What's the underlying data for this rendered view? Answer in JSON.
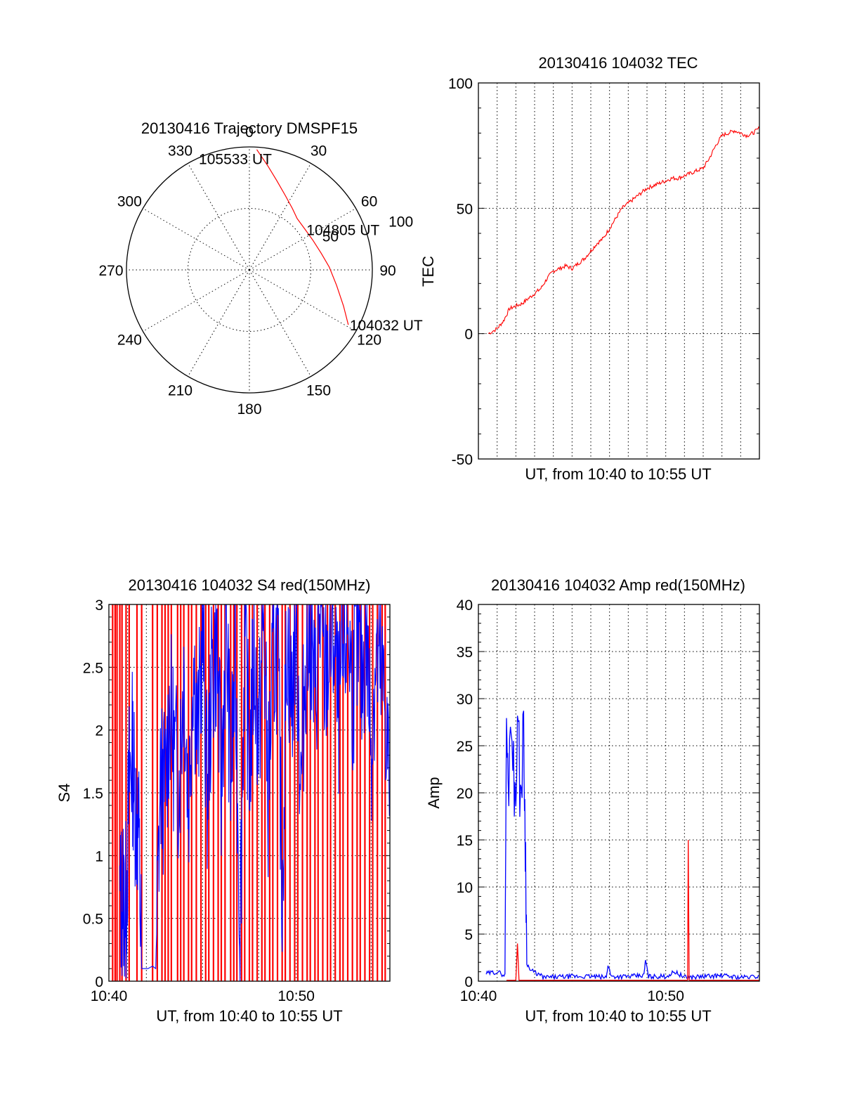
{
  "chart_data": [
    {
      "id": "trajectory",
      "type": "polar",
      "title": "20130416 Trajectory DMSPF15",
      "azimuth_labels": [
        "0",
        "30",
        "60",
        "90",
        "120",
        "150",
        "180",
        "210",
        "240",
        "270",
        "300",
        "330"
      ],
      "radial_labels": [
        "50",
        "100"
      ],
      "radial_max": 100,
      "series": [
        {
          "color": "#ff0000",
          "points": [
            {
              "azimuth": 119,
              "radius": 92
            },
            {
              "azimuth": 111,
              "radius": 82
            },
            {
              "azimuth": 100,
              "radius": 72
            },
            {
              "azimuth": 88,
              "radius": 65
            },
            {
              "azimuth": 77,
              "radius": 60
            },
            {
              "azimuth": 65,
              "radius": 57
            },
            {
              "azimuth": 54,
              "radius": 56
            },
            {
              "azimuth": 43,
              "radius": 57
            },
            {
              "azimuth": 35,
              "radius": 61
            },
            {
              "azimuth": 26,
              "radius": 67
            },
            {
              "azimuth": 17,
              "radius": 76
            },
            {
              "azimuth": 10,
              "radius": 86
            },
            {
              "azimuth": 3.5,
              "radius": 98
            }
          ]
        }
      ],
      "annotations": [
        {
          "text": "105533 UT",
          "azimuth": 335,
          "radius": 100
        },
        {
          "text": "104805 UT",
          "azimuth": 54,
          "radius": 56
        },
        {
          "text": "104032 UT",
          "azimuth": 119,
          "radius": 92
        }
      ]
    },
    {
      "id": "tec",
      "type": "line",
      "title": "20130416 104032 TEC",
      "xlabel": "UT, from 10:40 to 10:55 UT",
      "ylabel": "TEC",
      "xlim": [
        "10:40",
        "10:55"
      ],
      "ylim": [
        -50,
        100
      ],
      "yticks": [
        "100",
        "50",
        "0",
        "-50"
      ],
      "xticks": [],
      "series": [
        {
          "color": "#ff0000",
          "x": [
            "10:40:32",
            "10:41:00",
            "10:41:20",
            "10:41:40",
            "10:42:00",
            "10:42:20",
            "10:42:40",
            "10:43:00",
            "10:43:20",
            "10:43:40",
            "10:44:00",
            "10:44:20",
            "10:44:40",
            "10:45:00",
            "10:45:20",
            "10:45:40",
            "10:46:00",
            "10:46:20",
            "10:46:40",
            "10:47:00",
            "10:47:20",
            "10:47:40",
            "10:48:00",
            "10:48:20",
            "10:48:40",
            "10:49:00",
            "10:49:20",
            "10:49:40",
            "10:50:00",
            "10:50:20",
            "10:50:40",
            "10:51:00",
            "10:51:20",
            "10:51:40",
            "10:52:00",
            "10:52:20",
            "10:52:40",
            "10:53:00",
            "10:53:20",
            "10:53:40",
            "10:54:00",
            "10:54:20",
            "10:54:40",
            "10:55:00"
          ],
          "y": [
            0,
            2,
            5,
            10,
            11,
            12,
            14,
            16,
            18,
            22,
            25,
            26,
            27,
            26,
            28,
            30,
            33,
            36,
            38,
            42,
            46,
            50,
            52,
            54,
            56,
            58,
            59,
            60,
            61,
            62,
            62,
            63,
            64,
            65,
            66,
            70,
            75,
            79,
            80,
            81,
            80,
            79,
            80,
            82
          ]
        }
      ]
    },
    {
      "id": "s4",
      "type": "line",
      "title": "20130416 104032 S4 red(150MHz)",
      "xlabel": "UT, from 10:40 to 10:55 UT",
      "ylabel": "S4",
      "xlim": [
        "10:40",
        "10:55"
      ],
      "ylim": [
        0,
        3
      ],
      "yticks": [
        "3",
        "2.5",
        "2",
        "1.5",
        "1",
        "0.5",
        "0"
      ],
      "xticks": [
        "10:40",
        "10:50"
      ],
      "series": [
        {
          "color": "#ff0000",
          "x": [
            "10:40:12",
            "10:40:20",
            "10:40:26",
            "10:40:35",
            "10:40:42",
            "10:40:55",
            "10:41:05",
            "10:41:30",
            "10:41:45",
            "10:42:20",
            "10:42:35",
            "10:42:50",
            "10:43:00",
            "10:43:10",
            "10:43:20",
            "10:43:40",
            "10:43:50",
            "10:44:00",
            "10:44:15",
            "10:44:25",
            "10:44:40",
            "10:44:55",
            "10:45:10",
            "10:45:20",
            "10:45:35",
            "10:45:50",
            "10:46:00",
            "10:46:12",
            "10:46:30",
            "10:46:40",
            "10:46:50",
            "10:47:05",
            "10:47:15",
            "10:47:30",
            "10:47:40",
            "10:47:55",
            "10:48:10",
            "10:48:20",
            "10:48:35",
            "10:48:45",
            "10:49:00",
            "10:49:15",
            "10:49:25",
            "10:49:40",
            "10:49:55",
            "10:50:05",
            "10:50:20",
            "10:50:35",
            "10:50:45",
            "10:51:00",
            "10:51:10",
            "10:51:25",
            "10:51:40",
            "10:51:50",
            "10:52:05",
            "10:52:20",
            "10:52:30",
            "10:52:45",
            "10:53:00",
            "10:53:15",
            "10:53:25",
            "10:53:40",
            "10:53:55",
            "10:54:05",
            "10:54:20",
            "10:54:35",
            "10:54:45"
          ],
          "style": "spikes"
        },
        {
          "color": "#0000ff",
          "x": [
            "10:40:35",
            "10:40:45",
            "10:40:55",
            "10:41:05",
            "10:41:15",
            "10:41:25",
            "10:41:35",
            "10:41:45",
            "10:41:55",
            "10:42:05",
            "10:42:20",
            "10:42:30",
            "10:42:45",
            "10:43:00",
            "10:43:15",
            "10:43:30",
            "10:43:45",
            "10:44:00",
            "10:44:15",
            "10:44:30",
            "10:44:45",
            "10:45:00",
            "10:45:15",
            "10:45:30",
            "10:45:45",
            "10:46:00",
            "10:46:15",
            "10:46:30",
            "10:46:45",
            "10:47:00",
            "10:47:15",
            "10:47:30",
            "10:47:45",
            "10:48:00",
            "10:48:15",
            "10:48:30",
            "10:48:45",
            "10:49:00",
            "10:49:15",
            "10:49:30",
            "10:49:45",
            "10:50:00",
            "10:50:15",
            "10:50:30",
            "10:50:45",
            "10:51:00",
            "10:51:15",
            "10:51:30",
            "10:51:45",
            "10:52:00",
            "10:52:15",
            "10:52:30",
            "10:52:45",
            "10:53:00",
            "10:53:15",
            "10:53:30",
            "10:53:45",
            "10:54:00",
            "10:54:15",
            "10:54:30",
            "10:54:45",
            "10:55:00"
          ],
          "y": [
            0.6,
            0.7,
            0.6,
            1.6,
            1.8,
            1.4,
            1.2,
            0.1,
            0.1,
            0.1,
            0.12,
            0.1,
            1.6,
            1.5,
            2.2,
            1.8,
            1.6,
            2.5,
            1.4,
            2.6,
            1.9,
            2.8,
            1.5,
            2.4,
            2.7,
            1.5,
            2.9,
            1.6,
            2.5,
            0.4,
            2.8,
            1.7,
            2.6,
            1.9,
            2.9,
            1.5,
            2.5,
            2.7,
            0.7,
            2.8,
            2.2,
            2.9,
            1.5,
            2.6,
            2.8,
            2.2,
            2.9,
            2.4,
            2.6,
            2.8,
            2.1,
            2.5,
            2.9,
            2.3,
            2.7,
            2.4,
            2.8,
            1.9,
            2.6,
            2.4,
            2.2,
            1.5
          ]
        }
      ]
    },
    {
      "id": "amp",
      "type": "line",
      "title": "20130416 104032 Amp red(150MHz)",
      "xlabel": "UT, from 10:40 to 10:55 UT",
      "ylabel": "Amp",
      "xlim": [
        "10:40",
        "10:55"
      ],
      "ylim": [
        0,
        40
      ],
      "yticks": [
        "40",
        "35",
        "30",
        "25",
        "20",
        "15",
        "10",
        "5",
        "0"
      ],
      "xticks": [
        "10:40",
        "10:50"
      ],
      "series": [
        {
          "color": "#0000ff",
          "x": [
            "10:40:25",
            "10:41:00",
            "10:41:25",
            "10:41:30",
            "10:41:35",
            "10:41:45",
            "10:41:55",
            "10:42:05",
            "10:42:15",
            "10:42:25",
            "10:42:30",
            "10:42:35",
            "10:42:45",
            "10:43:30",
            "10:45:00",
            "10:46:00",
            "10:46:50",
            "10:46:55",
            "10:47:05",
            "10:48:00",
            "10:48:50",
            "10:48:55",
            "10:49:05",
            "10:50:00",
            "10:50:30",
            "10:51:00",
            "10:52:00",
            "10:53:00",
            "10:54:00",
            "10:55:00"
          ],
          "y": [
            0.8,
            1.0,
            0.6,
            28,
            20,
            30,
            19,
            27,
            20,
            26,
            16,
            2,
            1.2,
            0.4,
            0.5,
            0.5,
            0.4,
            1.8,
            0.5,
            0.5,
            0.6,
            2.2,
            0.5,
            0.5,
            1.0,
            0.4,
            0.5,
            0.6,
            0.4,
            0.5
          ]
        },
        {
          "color": "#ff0000",
          "x": [
            "10:41:30",
            "10:42:00",
            "10:42:05",
            "10:42:10",
            "10:42:30",
            "10:51:10",
            "10:51:12",
            "10:51:15",
            "10:55:00"
          ],
          "y": [
            0.1,
            0.1,
            4,
            0.1,
            0.1,
            0.1,
            15,
            0.1,
            0.1
          ]
        }
      ]
    }
  ]
}
